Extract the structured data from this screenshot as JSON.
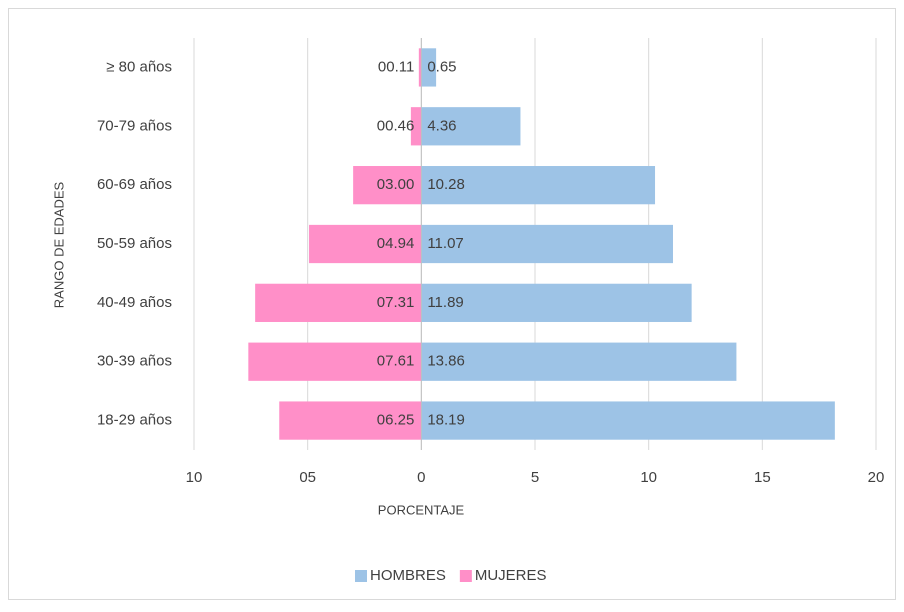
{
  "chart_data": {
    "type": "bar",
    "orientation": "horizontal",
    "stacked": true,
    "xlabel": "PORCENTAJE",
    "ylabel": "RANGO DE EDADES",
    "categories": [
      "18-29 años",
      "30-39 años",
      "40-49 años",
      "50-59 años",
      "60-69 años",
      "70-79 años",
      "≥ 80 años"
    ],
    "series": [
      {
        "name": "HOMBRES",
        "color": "#9dc3e6",
        "values": [
          18.19,
          13.86,
          11.89,
          11.07,
          10.28,
          4.36,
          0.65
        ]
      },
      {
        "name": "MUJERES",
        "color": "#ff8fc8",
        "values": [
          -6.25,
          -7.61,
          -7.31,
          -4.94,
          -3.0,
          -0.46,
          -0.11
        ],
        "value_labels": [
          "06.25",
          "07.61",
          "07.31",
          "04.94",
          "03.00",
          "00.46",
          "00.11"
        ]
      }
    ],
    "xlim": [
      -10,
      20
    ],
    "xticks": [
      {
        "value": -10,
        "label": "10"
      },
      {
        "value": -5,
        "label": "05"
      },
      0,
      5,
      10,
      15,
      20
    ],
    "grid": true,
    "legend": "bottom"
  }
}
